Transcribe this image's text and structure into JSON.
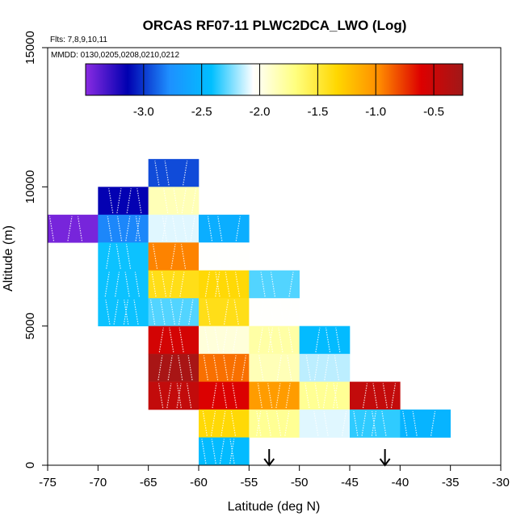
{
  "chart_data": {
    "type": "heatmap",
    "title": "ORCAS RF07-11 PLWC2DCA_LWO (Log)",
    "flights_note": "Flts: 7,8,9,10,11",
    "dates_note": "MMDD: 0130,0205,0208,0210,0212",
    "xlabel": "Latitude (deg N)",
    "ylabel": "Altitude (m)",
    "xlim": [
      -75,
      -30
    ],
    "ylim": [
      0,
      15000
    ],
    "x_ticks": [
      -75,
      -70,
      -65,
      -60,
      -55,
      -50,
      -45,
      -40,
      -35,
      -30
    ],
    "x_tick_labels": [
      "-75",
      "-70",
      "-65",
      "-60",
      "-55",
      "-50",
      "-45",
      "-40",
      "-35",
      "-30"
    ],
    "y_ticks": [
      0,
      5000,
      10000,
      15000
    ],
    "y_tick_labels": [
      "0",
      "5000",
      "10000",
      "15000"
    ],
    "bin_width_deg": 5,
    "bin_height_m": 1000,
    "colorbar": {
      "range": [
        -3.5,
        -0.25
      ],
      "ticks": [
        -3.0,
        -2.5,
        -2.0,
        -1.5,
        -1.0,
        -0.5
      ],
      "tick_labels": [
        "-3.0",
        "-2.5",
        "-2.0",
        "-1.5",
        "-1.0",
        "-0.5"
      ],
      "stops": [
        "#8a2be2",
        "#0000b0",
        "#1e90ff",
        "#00bfff",
        "#ffffff",
        "#ffff80",
        "#ffd700",
        "#ff8c00",
        "#dd0000",
        "#a01818"
      ]
    },
    "cells": [
      {
        "lat": -75,
        "alt": 8000,
        "value": -3.45
      },
      {
        "lat": -70,
        "alt": 9000,
        "value": -3.15
      },
      {
        "lat": -70,
        "alt": 8000,
        "value": -2.8
      },
      {
        "lat": -70,
        "alt": 7000,
        "value": -2.4
      },
      {
        "lat": -70,
        "alt": 6000,
        "value": -2.4
      },
      {
        "lat": -70,
        "alt": 5000,
        "value": -2.4
      },
      {
        "lat": -65,
        "alt": 10000,
        "value": -2.95
      },
      {
        "lat": -65,
        "alt": 9000,
        "value": -1.85
      },
      {
        "lat": -65,
        "alt": 8000,
        "value": -2.1
      },
      {
        "lat": -65,
        "alt": 7000,
        "value": -0.95
      },
      {
        "lat": -65,
        "alt": 6000,
        "value": -1.4
      },
      {
        "lat": -65,
        "alt": 5000,
        "value": -2.3
      },
      {
        "lat": -65,
        "alt": 4000,
        "value": -0.55
      },
      {
        "lat": -65,
        "alt": 3000,
        "value": -0.3
      },
      {
        "lat": -65,
        "alt": 2000,
        "value": -0.45
      },
      {
        "lat": -60,
        "alt": 8000,
        "value": -2.55
      },
      {
        "lat": -60,
        "alt": 7000,
        "value": -2.05
      },
      {
        "lat": -60,
        "alt": 6000,
        "value": -1.35
      },
      {
        "lat": -60,
        "alt": 5000,
        "value": -1.4
      },
      {
        "lat": -60,
        "alt": 4000,
        "value": -1.95
      },
      {
        "lat": -60,
        "alt": 3000,
        "value": -0.9
      },
      {
        "lat": -60,
        "alt": 2000,
        "value": -0.6
      },
      {
        "lat": -60,
        "alt": 1000,
        "value": -1.35
      },
      {
        "lat": -60,
        "alt": 0,
        "value": -2.45
      },
      {
        "lat": -55,
        "alt": 6000,
        "value": -2.3
      },
      {
        "lat": -55,
        "alt": 5000,
        "value": -2.05
      },
      {
        "lat": -55,
        "alt": 4000,
        "value": -1.8
      },
      {
        "lat": -55,
        "alt": 3000,
        "value": -1.85
      },
      {
        "lat": -55,
        "alt": 2000,
        "value": -1.05
      },
      {
        "lat": -55,
        "alt": 1000,
        "value": -1.75
      },
      {
        "lat": -50,
        "alt": 4000,
        "value": -2.45
      },
      {
        "lat": -50,
        "alt": 3000,
        "value": -2.15
      },
      {
        "lat": -50,
        "alt": 2000,
        "value": -1.75
      },
      {
        "lat": -50,
        "alt": 1000,
        "value": -2.1
      },
      {
        "lat": -45,
        "alt": 2000,
        "value": -0.45
      },
      {
        "lat": -45,
        "alt": 1000,
        "value": -2.35
      },
      {
        "lat": -40,
        "alt": 1000,
        "value": -2.5
      }
    ],
    "arrows": [
      {
        "lat": -53
      },
      {
        "lat": -41.5
      }
    ]
  }
}
